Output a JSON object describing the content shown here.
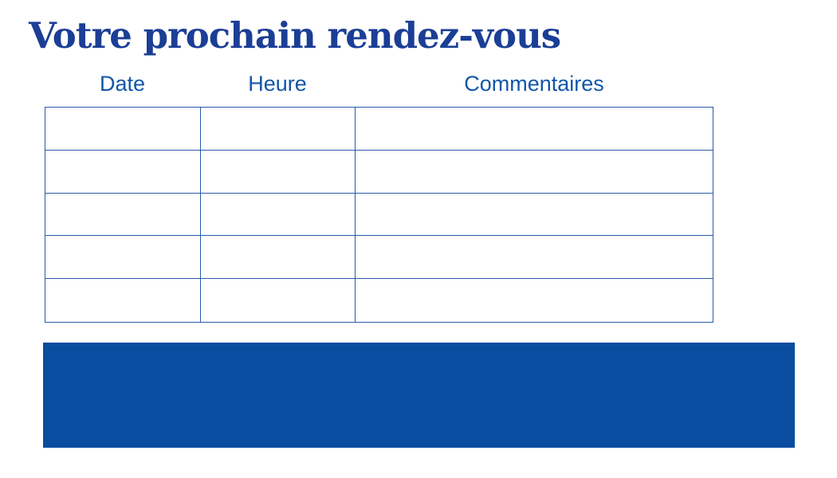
{
  "page": {
    "title": "Votre prochain rendez-vous"
  },
  "table": {
    "headers": [
      "Date",
      "Heure",
      "Commentaires"
    ],
    "row_count": 5,
    "rows": [
      [
        "",
        "",
        ""
      ],
      [
        "",
        "",
        ""
      ],
      [
        "",
        "",
        ""
      ],
      [
        "",
        "",
        ""
      ],
      [
        "",
        "",
        ""
      ]
    ]
  },
  "banner": {
    "fill": "#0a4c9f"
  },
  "colors": {
    "title_text": "#1b3e96",
    "header_text": "#1156a9",
    "table_border": "#2b5aa9",
    "banner_fill": "#0a4c9f",
    "background": "#ffffff"
  }
}
